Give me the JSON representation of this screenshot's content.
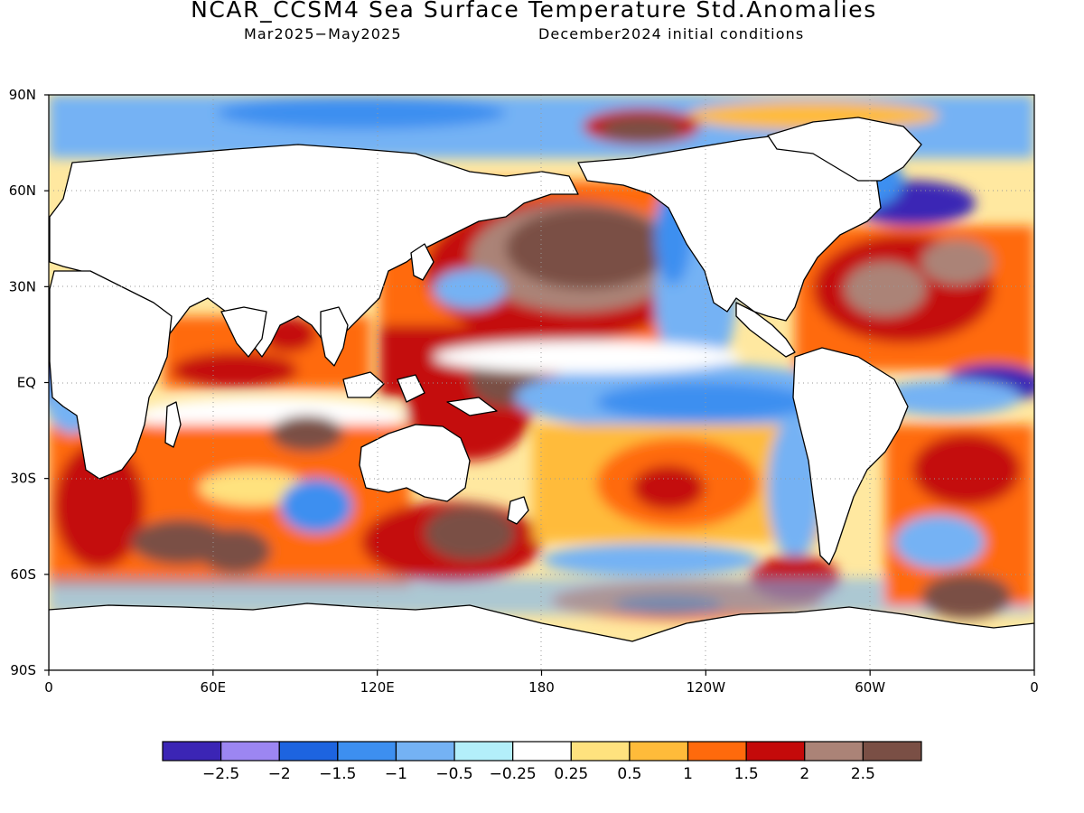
{
  "title": "NCAR_CCSM4 Sea Surface Temperature Std.Anomalies",
  "subtitle_period": "Mar2025−May2025",
  "subtitle_init": "December2024 initial conditions",
  "map": {
    "lon_range": [
      0,
      360
    ],
    "lat_range": [
      -90,
      90
    ],
    "grid": "dotted",
    "lat_ticks": [
      {
        "lat": 90,
        "label": "90N"
      },
      {
        "lat": 60,
        "label": "60N"
      },
      {
        "lat": 30,
        "label": "30N"
      },
      {
        "lat": 0,
        "label": "EQ"
      },
      {
        "lat": -30,
        "label": "30S"
      },
      {
        "lat": -60,
        "label": "60S"
      },
      {
        "lat": -90,
        "label": "90S"
      }
    ],
    "lon_ticks": [
      {
        "lon": 0,
        "label": "0"
      },
      {
        "lon": 60,
        "label": "60E"
      },
      {
        "lon": 120,
        "label": "120E"
      },
      {
        "lon": 180,
        "label": "180"
      },
      {
        "lon": 240,
        "label": "120W"
      },
      {
        "lon": 300,
        "label": "60W"
      },
      {
        "lon": 360,
        "label": "0"
      }
    ]
  },
  "colorbar": {
    "colors": [
      "#3b25b5",
      "#9c86f2",
      "#1d64e0",
      "#3d8ff0",
      "#74b2f4",
      "#b3effa",
      "#ffffff",
      "#ffe27e",
      "#ffbb3a",
      "#ff6a0c",
      "#c40a0a",
      "#ab8377",
      "#7a4f45"
    ],
    "labels": [
      "−2.5",
      "−2",
      "−1.5",
      "−1",
      "−0.5",
      "−0.25",
      "0.25",
      "0.5",
      "1",
      "1.5",
      "2",
      "2.5"
    ]
  },
  "anomaly_regions": [
    {
      "name": "north-pacific-warm-blob",
      "lon": [
        135,
        205
      ],
      "lat": [
        22,
        58
      ],
      "anomaly": 2.8
    },
    {
      "name": "western-equatorial-pacific-warm-pool",
      "lon": [
        125,
        200
      ],
      "lat": [
        -5,
        20
      ],
      "anomaly": 2.0
    },
    {
      "name": "central-east-equatorial-pacific-cool-tongue",
      "lon": [
        190,
        265
      ],
      "lat": [
        -12,
        8
      ],
      "anomaly": -0.8
    },
    {
      "name": "california-current-cool",
      "lon": [
        220,
        245
      ],
      "lat": [
        20,
        52
      ],
      "anomaly": -0.7
    },
    {
      "name": "north-atlantic-warm",
      "lon": [
        280,
        345
      ],
      "lat": [
        10,
        45
      ],
      "anomaly": 2.0
    },
    {
      "name": "eastern-tropical-atlantic-cool",
      "lon": [
        330,
        360
      ],
      "lat": [
        -6,
        5
      ],
      "anomaly": -2.3
    },
    {
      "name": "labrador-sea-cool",
      "lon": [
        300,
        330
      ],
      "lat": [
        50,
        65
      ],
      "anomaly": -2.2
    },
    {
      "name": "indian-ocean-southern-warm",
      "lon": [
        30,
        120
      ],
      "lat": [
        -55,
        -25
      ],
      "anomaly": 2.2
    },
    {
      "name": "south-pacific-warm",
      "lon": [
        200,
        250
      ],
      "lat": [
        -40,
        -20
      ],
      "anomaly": 2.0
    },
    {
      "name": "southern-ocean-warm-band",
      "lon": [
        190,
        280
      ],
      "lat": [
        -68,
        -60
      ],
      "anomaly": 1.8
    },
    {
      "name": "south-atlantic-warm",
      "lon": [
        320,
        360
      ],
      "lat": [
        -65,
        -25
      ],
      "anomaly": 2.0
    },
    {
      "name": "arctic-beaufort-warm",
      "lon": [
        190,
        220
      ],
      "lat": [
        70,
        80
      ],
      "anomaly": 2.6
    }
  ]
}
